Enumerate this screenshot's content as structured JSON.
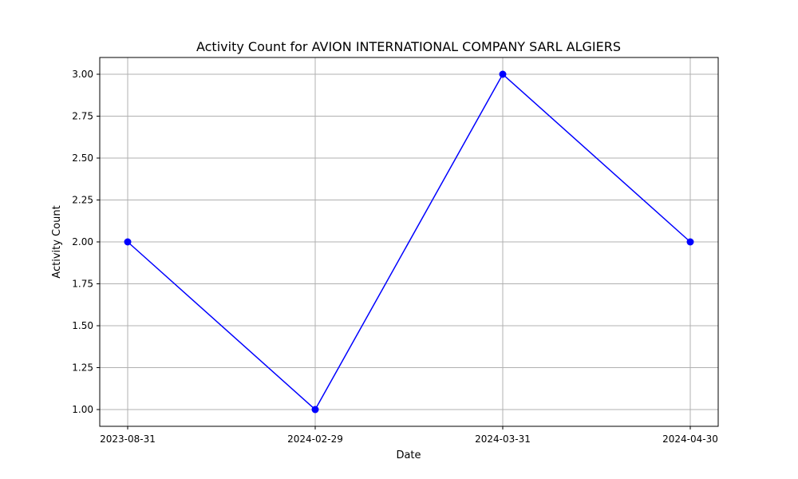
{
  "chart_data": {
    "type": "line",
    "title": "Activity Count for AVION INTERNATIONAL COMPANY SARL ALGIERS",
    "xlabel": "Date",
    "ylabel": "Activity Count",
    "categories": [
      "2023-08-31",
      "2024-02-29",
      "2024-03-31",
      "2024-04-30"
    ],
    "series": [
      {
        "values": [
          2,
          1,
          3,
          2
        ],
        "color": "#0000ff",
        "marker": "circle"
      }
    ],
    "y_ticks": [
      "1.00",
      "1.25",
      "1.50",
      "1.75",
      "2.00",
      "2.25",
      "2.50",
      "2.75",
      "3.00"
    ],
    "ylim": [
      0.9,
      3.1
    ],
    "grid": true,
    "legend": "none"
  }
}
